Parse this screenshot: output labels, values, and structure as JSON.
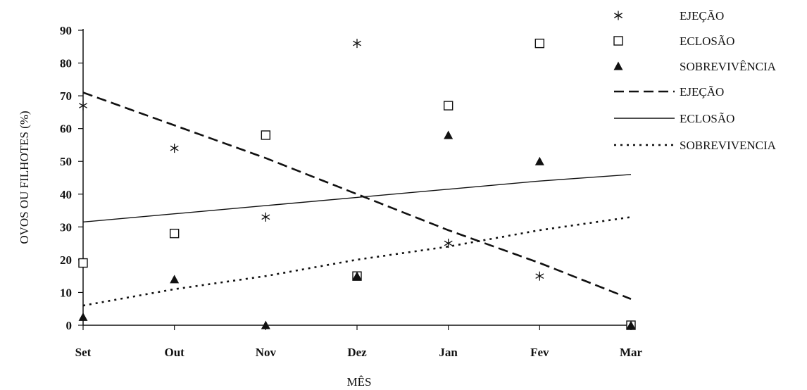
{
  "chart_data": {
    "type": "scatter",
    "xlabel": "MÊS",
    "ylabel": "OVOS OU FILHOTES (%)",
    "categories": [
      "Set",
      "Out",
      "Nov",
      "Dez",
      "Jan",
      "Fev",
      "Mar"
    ],
    "yticks": [
      "0",
      "10",
      "20",
      "30",
      "40",
      "50",
      "60",
      "70",
      "80",
      "90"
    ],
    "ylim": [
      0,
      90
    ],
    "grid": false,
    "legend_position": "top-right",
    "series": [
      {
        "name": "EJEÇÃO",
        "marker": "asterisk",
        "values": [
          67,
          54,
          33,
          86,
          25,
          15,
          null
        ]
      },
      {
        "name": "ECLOSÃO",
        "marker": "open-square",
        "values": [
          19,
          28,
          58,
          15,
          67,
          86,
          0
        ]
      },
      {
        "name": "SOBREVIVÊNCIA",
        "marker": "filled-triangle",
        "values": [
          2.5,
          14,
          0,
          15,
          58,
          50,
          0
        ]
      }
    ],
    "trendlines": [
      {
        "name": "EJEÇÃO",
        "style": "dashed",
        "values": [
          71,
          61,
          51,
          40,
          29,
          19,
          8
        ]
      },
      {
        "name": "ECLOSÃO",
        "style": "solid",
        "values": [
          31.5,
          34,
          36.5,
          39,
          41.5,
          44,
          46
        ]
      },
      {
        "name": "SOBREVIVENCIA",
        "style": "dotted",
        "values": [
          6,
          11,
          15,
          20,
          24,
          29,
          33
        ]
      }
    ],
    "colors": {
      "ink": "#111111",
      "background": "#ffffff"
    }
  }
}
